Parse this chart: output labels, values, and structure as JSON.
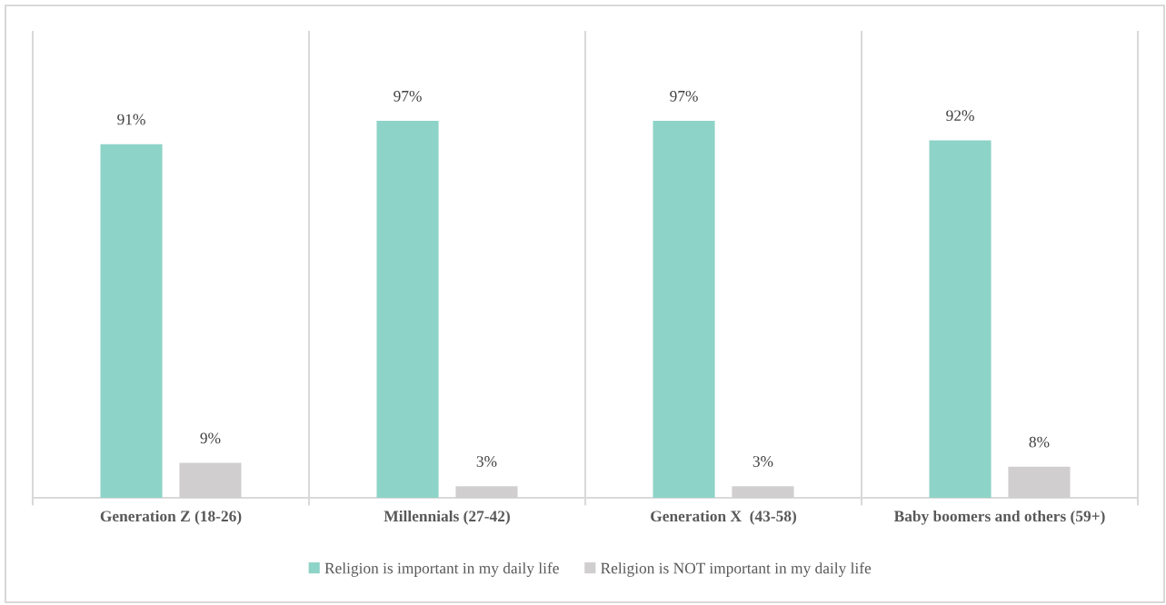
{
  "chart_data": {
    "type": "bar",
    "categories": [
      "Generation Z (18-26)",
      "Millennials (27-42)",
      "Generation X  (43-58)",
      "Baby boomers and others (59+)"
    ],
    "series": [
      {
        "name": "Religion is important in my daily life",
        "color": "#8ed3c7",
        "values": [
          91,
          97,
          97,
          92
        ],
        "value_labels": [
          "91%",
          "97%",
          "97%",
          "92%"
        ]
      },
      {
        "name": "Religion is NOT important in my daily life",
        "color": "#d0cecf",
        "values": [
          9,
          3,
          3,
          8
        ],
        "value_labels": [
          "9%",
          "3%",
          "3%",
          "8%"
        ]
      }
    ],
    "grid": "x",
    "legend": "bottom"
  }
}
